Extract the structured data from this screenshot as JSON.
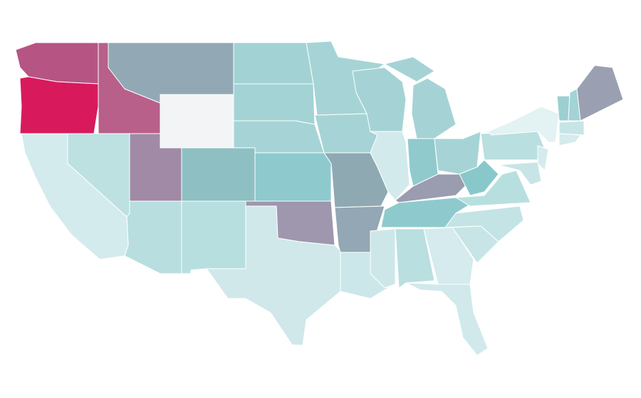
{
  "map": {
    "regions": [
      {
        "color": "#b65584"
      },
      {
        "color": "#d81a5c"
      },
      {
        "color": "#b8608a"
      },
      {
        "color": "#93a8b5"
      },
      {
        "color": "#f2f4f5"
      },
      {
        "color": "#a2d2d4"
      },
      {
        "color": "#a3d3d5"
      },
      {
        "color": "#a6d4d6"
      },
      {
        "color": "#8ecacd"
      },
      {
        "color": "#9e97ae"
      },
      {
        "color": "#d0e8ea"
      },
      {
        "color": "#b8dfe0"
      },
      {
        "color": "#8ec0c3"
      },
      {
        "color": "#a08aa6"
      },
      {
        "color": "#b9dedf"
      },
      {
        "color": "#bde0e1"
      },
      {
        "color": "#d4ebed"
      },
      {
        "color": "#a6d4d6"
      },
      {
        "color": "#a6d4d6"
      },
      {
        "color": "#8fa9b3"
      },
      {
        "color": "#93a7b4"
      },
      {
        "color": "#cce7e9"
      },
      {
        "color": "#a5d3d5"
      },
      {
        "color": "#d3eaec"
      },
      {
        "color": "#a5d3d5"
      },
      {
        "color": "#a5d3d5"
      },
      {
        "color": "#90cacd"
      },
      {
        "color": "#a6d4d6"
      },
      {
        "color": "#9a9cb0"
      },
      {
        "color": "#8ecacd"
      },
      {
        "color": "#cde7e9"
      },
      {
        "color": "#b9dfe0"
      },
      {
        "color": "#d5ebed"
      },
      {
        "color": "#d1e9eb"
      },
      {
        "color": "#c7e5e6"
      },
      {
        "color": "#c4e3e5"
      },
      {
        "color": "#b8dfe0"
      },
      {
        "color": "#88c8cb"
      },
      {
        "color": "#b9dfe0"
      },
      {
        "color": "#e3f2f3"
      },
      {
        "color": "#d5ebed"
      },
      {
        "color": "#c7e5e6"
      },
      {
        "color": "#9ccfd2"
      },
      {
        "color": "#a3d3d5"
      },
      {
        "color": "#9aa0b1"
      },
      {
        "color": "#c7e5e6"
      },
      {
        "color": "#d5ebed"
      }
    ]
  }
}
